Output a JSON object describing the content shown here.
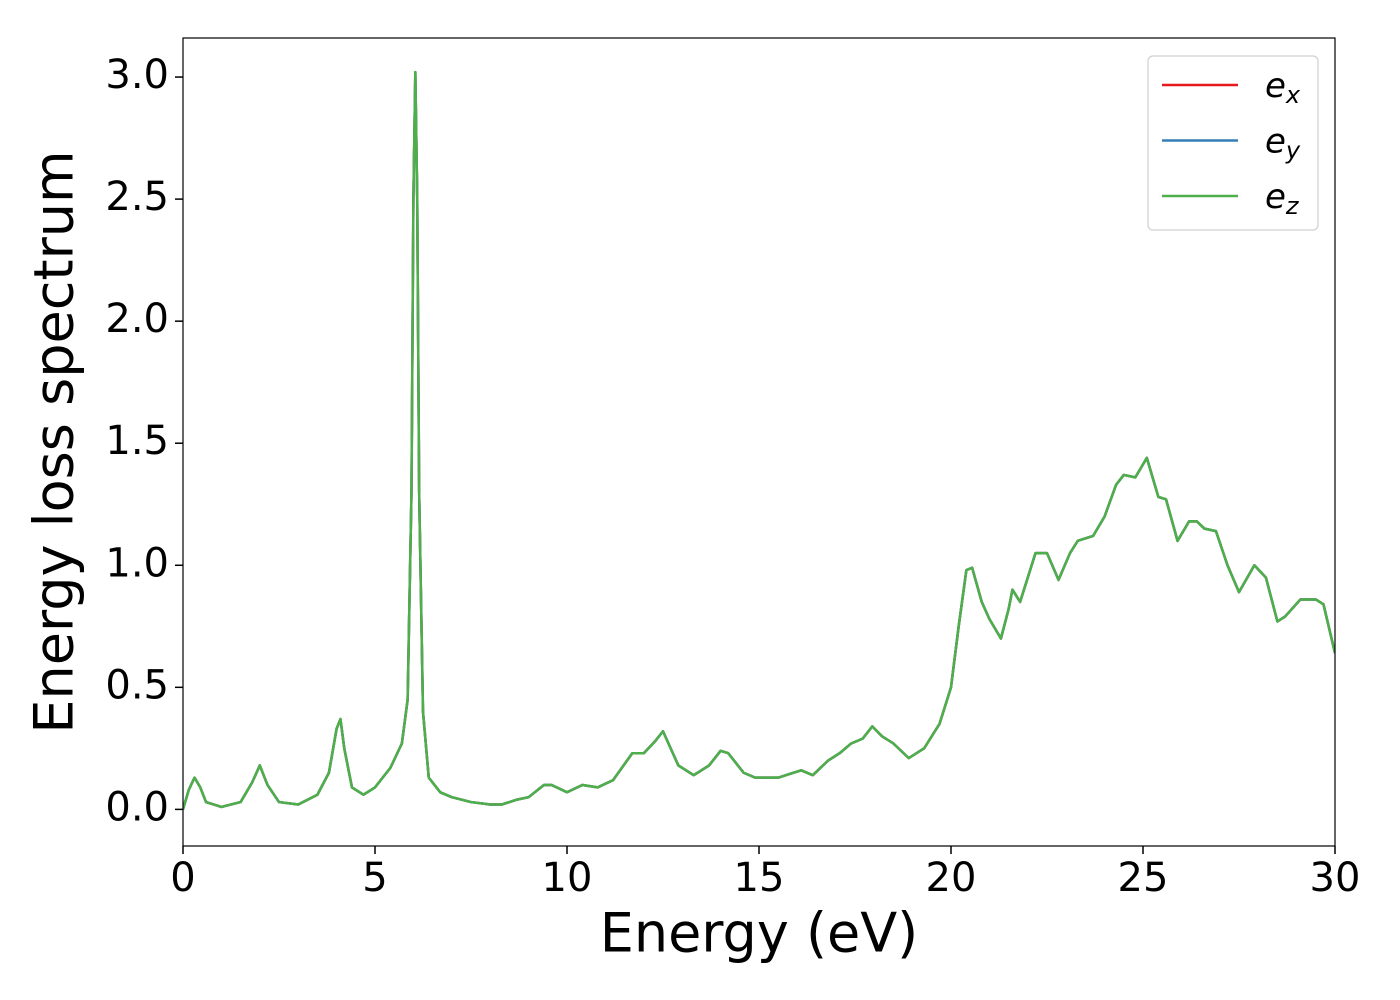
{
  "chart_data": {
    "type": "line",
    "xlabel": "Energy (eV)",
    "ylabel": "Energy loss spectrum",
    "x": [
      0,
      0.15,
      0.3,
      0.45,
      0.6,
      1.0,
      1.5,
      1.8,
      2.0,
      2.2,
      2.5,
      3.0,
      3.5,
      3.8,
      4.0,
      4.1,
      4.2,
      4.4,
      4.7,
      5.0,
      5.4,
      5.7,
      5.85,
      5.95,
      6.0,
      6.05,
      6.1,
      6.15,
      6.25,
      6.4,
      6.7,
      7.0,
      7.5,
      8.0,
      8.3,
      8.7,
      9.0,
      9.4,
      9.6,
      10.0,
      10.4,
      10.8,
      11.2,
      11.7,
      12.0,
      12.3,
      12.5,
      12.7,
      12.9,
      13.3,
      13.7,
      14.0,
      14.2,
      14.6,
      14.9,
      15.5,
      15.8,
      16.1,
      16.4,
      16.8,
      17.1,
      17.4,
      17.7,
      17.95,
      18.2,
      18.5,
      18.9,
      19.3,
      19.7,
      20.0,
      20.2,
      20.4,
      20.55,
      20.8,
      21.0,
      21.3,
      21.5,
      21.6,
      21.8,
      22.0,
      22.2,
      22.5,
      22.8,
      23.1,
      23.3,
      23.7,
      24.0,
      24.3,
      24.5,
      24.8,
      25.1,
      25.4,
      25.6,
      25.9,
      26.2,
      26.4,
      26.6,
      26.9,
      27.2,
      27.5,
      27.9,
      28.2,
      28.5,
      28.7,
      29.1,
      29.5,
      29.7,
      30.0
    ],
    "series": [
      {
        "name": "ex",
        "color": "#e41a1c",
        "values": [
          0.0,
          0.08,
          0.13,
          0.09,
          0.03,
          0.01,
          0.03,
          0.11,
          0.18,
          0.1,
          0.03,
          0.02,
          0.06,
          0.15,
          0.33,
          0.37,
          0.25,
          0.09,
          0.06,
          0.09,
          0.17,
          0.27,
          0.45,
          1.3,
          2.5,
          3.02,
          2.5,
          1.3,
          0.4,
          0.13,
          0.07,
          0.05,
          0.03,
          0.02,
          0.02,
          0.04,
          0.05,
          0.1,
          0.1,
          0.07,
          0.1,
          0.09,
          0.12,
          0.23,
          0.23,
          0.28,
          0.32,
          0.25,
          0.18,
          0.14,
          0.18,
          0.24,
          0.23,
          0.15,
          0.13,
          0.13,
          0.145,
          0.16,
          0.14,
          0.2,
          0.23,
          0.27,
          0.29,
          0.34,
          0.3,
          0.27,
          0.21,
          0.25,
          0.35,
          0.5,
          0.75,
          0.98,
          0.99,
          0.85,
          0.78,
          0.7,
          0.82,
          0.9,
          0.85,
          0.95,
          1.05,
          1.05,
          0.94,
          1.05,
          1.1,
          1.12,
          1.2,
          1.33,
          1.37,
          1.36,
          1.44,
          1.28,
          1.27,
          1.1,
          1.18,
          1.18,
          1.15,
          1.14,
          1.0,
          0.89,
          1.0,
          0.95,
          0.77,
          0.79,
          0.86,
          0.86,
          0.84,
          0.64
        ]
      },
      {
        "name": "ey",
        "color": "#377eb8",
        "values": [
          0.0,
          0.08,
          0.13,
          0.09,
          0.03,
          0.01,
          0.03,
          0.11,
          0.18,
          0.1,
          0.03,
          0.02,
          0.06,
          0.15,
          0.33,
          0.37,
          0.25,
          0.09,
          0.06,
          0.09,
          0.17,
          0.27,
          0.45,
          1.3,
          2.5,
          3.02,
          2.5,
          1.3,
          0.4,
          0.13,
          0.07,
          0.05,
          0.03,
          0.02,
          0.02,
          0.04,
          0.05,
          0.1,
          0.1,
          0.07,
          0.1,
          0.09,
          0.12,
          0.23,
          0.23,
          0.28,
          0.32,
          0.25,
          0.18,
          0.14,
          0.18,
          0.24,
          0.23,
          0.15,
          0.13,
          0.13,
          0.145,
          0.16,
          0.14,
          0.2,
          0.23,
          0.27,
          0.29,
          0.34,
          0.3,
          0.27,
          0.21,
          0.25,
          0.35,
          0.5,
          0.75,
          0.98,
          0.99,
          0.85,
          0.78,
          0.7,
          0.82,
          0.9,
          0.85,
          0.95,
          1.05,
          1.05,
          0.94,
          1.05,
          1.1,
          1.12,
          1.2,
          1.33,
          1.37,
          1.36,
          1.44,
          1.28,
          1.27,
          1.1,
          1.18,
          1.18,
          1.15,
          1.14,
          1.0,
          0.89,
          1.0,
          0.95,
          0.77,
          0.79,
          0.86,
          0.86,
          0.84,
          0.64
        ]
      },
      {
        "name": "ez",
        "color": "#4daf4a",
        "values": [
          0.0,
          0.08,
          0.13,
          0.09,
          0.03,
          0.01,
          0.03,
          0.11,
          0.18,
          0.1,
          0.03,
          0.02,
          0.06,
          0.15,
          0.33,
          0.37,
          0.25,
          0.09,
          0.06,
          0.09,
          0.17,
          0.27,
          0.45,
          1.3,
          2.5,
          3.02,
          2.5,
          1.3,
          0.4,
          0.13,
          0.07,
          0.05,
          0.03,
          0.02,
          0.02,
          0.04,
          0.05,
          0.1,
          0.1,
          0.07,
          0.1,
          0.09,
          0.12,
          0.23,
          0.23,
          0.28,
          0.32,
          0.25,
          0.18,
          0.14,
          0.18,
          0.24,
          0.23,
          0.15,
          0.13,
          0.13,
          0.145,
          0.16,
          0.14,
          0.2,
          0.23,
          0.27,
          0.29,
          0.34,
          0.3,
          0.27,
          0.21,
          0.25,
          0.35,
          0.5,
          0.75,
          0.98,
          0.99,
          0.85,
          0.78,
          0.7,
          0.82,
          0.9,
          0.85,
          0.95,
          1.05,
          1.05,
          0.94,
          1.05,
          1.1,
          1.12,
          1.2,
          1.33,
          1.37,
          1.36,
          1.44,
          1.28,
          1.27,
          1.1,
          1.18,
          1.18,
          1.15,
          1.14,
          1.0,
          0.89,
          1.0,
          0.95,
          0.77,
          0.79,
          0.86,
          0.86,
          0.84,
          0.64
        ]
      }
    ],
    "xlim": [
      0,
      30
    ],
    "xticks": [
      0,
      5,
      10,
      15,
      20,
      25,
      30
    ],
    "ylim": [
      -0.15,
      3.16
    ],
    "yticks": [
      {
        "value": 0,
        "label": "0.0"
      },
      0.5,
      {
        "value": 1,
        "label": "1.0"
      },
      1.5,
      {
        "value": 2,
        "label": "2.0"
      },
      2.5,
      {
        "value": 3,
        "label": "3.0"
      }
    ],
    "legend": "upper right"
  }
}
